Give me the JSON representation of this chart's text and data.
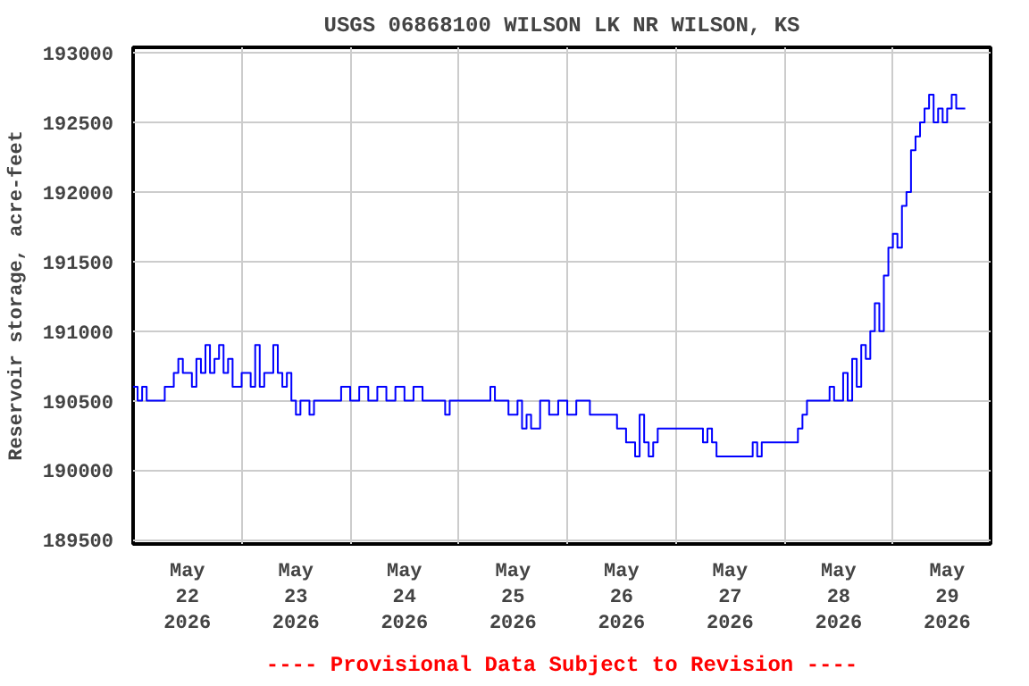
{
  "chart_data": {
    "type": "step",
    "title": "USGS 06868100 WILSON LK NR WILSON, KS",
    "ylabel": "Reservoir storage, acre-feet",
    "annotations": [
      "---- Provisional Data Subject to Revision ----"
    ],
    "color": "#0000ff",
    "grid": true,
    "line_style": "solid",
    "xlim": [
      "2026-05-22T00:00",
      "2026-05-29T21:36"
    ],
    "xticks": [
      {
        "value": "2026-05-22T12:00",
        "label": "May\n22\n2026"
      },
      {
        "value": "2026-05-23T00:00",
        "label": null
      },
      {
        "value": "2026-05-23T12:00",
        "label": "May\n23\n2026"
      },
      {
        "value": "2026-05-24T00:00",
        "label": null
      },
      {
        "value": "2026-05-24T12:00",
        "label": "May\n24\n2026"
      },
      {
        "value": "2026-05-25T00:00",
        "label": null
      },
      {
        "value": "2026-05-25T12:00",
        "label": "May\n25\n2026"
      },
      {
        "value": "2026-05-26T00:00",
        "label": null
      },
      {
        "value": "2026-05-26T12:00",
        "label": "May\n26\n2026"
      },
      {
        "value": "2026-05-27T00:00",
        "label": null
      },
      {
        "value": "2026-05-27T12:00",
        "label": "May\n27\n2026"
      },
      {
        "value": "2026-05-28T00:00",
        "label": null
      },
      {
        "value": "2026-05-28T12:00",
        "label": "May\n28\n2026"
      },
      {
        "value": "2026-05-29T00:00",
        "label": null
      },
      {
        "value": "2026-05-29T12:00",
        "label": "May\n29\n2026"
      }
    ],
    "ylim": [
      189470,
      193040
    ],
    "yticks": [
      189500,
      190000,
      190500,
      191000,
      191500,
      192000,
      192500,
      193000
    ],
    "x": [
      "2026-05-22T00:00",
      "2026-05-22T01:00",
      "2026-05-22T02:00",
      "2026-05-22T03:00",
      "2026-05-22T07:00",
      "2026-05-22T09:00",
      "2026-05-22T10:00",
      "2026-05-22T11:00",
      "2026-05-22T13:00",
      "2026-05-22T14:00",
      "2026-05-22T15:00",
      "2026-05-22T16:00",
      "2026-05-22T17:00",
      "2026-05-22T18:00",
      "2026-05-22T19:00",
      "2026-05-22T20:00",
      "2026-05-22T21:00",
      "2026-05-22T22:00",
      "2026-05-23T00:00",
      "2026-05-23T02:00",
      "2026-05-23T03:00",
      "2026-05-23T04:00",
      "2026-05-23T05:00",
      "2026-05-23T07:00",
      "2026-05-23T08:00",
      "2026-05-23T09:00",
      "2026-05-23T10:00",
      "2026-05-23T11:00",
      "2026-05-23T12:00",
      "2026-05-23T13:00",
      "2026-05-23T15:00",
      "2026-05-23T16:00",
      "2026-05-23T22:00",
      "2026-05-24T00:00",
      "2026-05-24T02:00",
      "2026-05-24T04:00",
      "2026-05-24T06:00",
      "2026-05-24T08:00",
      "2026-05-24T10:00",
      "2026-05-24T12:00",
      "2026-05-24T14:00",
      "2026-05-24T16:00",
      "2026-05-24T21:00",
      "2026-05-24T22:00",
      "2026-05-25T07:00",
      "2026-05-25T08:00",
      "2026-05-25T11:00",
      "2026-05-25T13:00",
      "2026-05-25T14:00",
      "2026-05-25T15:00",
      "2026-05-25T16:00",
      "2026-05-25T18:00",
      "2026-05-25T20:00",
      "2026-05-25T22:00",
      "2026-05-26T00:00",
      "2026-05-26T02:00",
      "2026-05-26T05:00",
      "2026-05-26T11:00",
      "2026-05-26T13:00",
      "2026-05-26T15:00",
      "2026-05-26T16:00",
      "2026-05-26T17:00",
      "2026-05-26T18:00",
      "2026-05-26T19:00",
      "2026-05-26T20:00",
      "2026-05-27T06:00",
      "2026-05-27T07:00",
      "2026-05-27T08:00",
      "2026-05-27T09:00",
      "2026-05-27T17:00",
      "2026-05-27T18:00",
      "2026-05-27T19:00",
      "2026-05-28T03:00",
      "2026-05-28T04:00",
      "2026-05-28T05:00",
      "2026-05-28T10:00",
      "2026-05-28T11:00",
      "2026-05-28T13:00",
      "2026-05-28T14:00",
      "2026-05-28T15:00",
      "2026-05-28T16:00",
      "2026-05-28T17:00",
      "2026-05-28T18:00",
      "2026-05-28T19:00",
      "2026-05-28T20:00",
      "2026-05-28T21:00",
      "2026-05-28T22:00",
      "2026-05-28T23:00",
      "2026-05-29T00:00",
      "2026-05-29T01:00",
      "2026-05-29T02:00",
      "2026-05-29T03:00",
      "2026-05-29T04:00",
      "2026-05-29T05:00",
      "2026-05-29T06:00",
      "2026-05-29T07:00",
      "2026-05-29T08:00",
      "2026-05-29T09:00",
      "2026-05-29T10:00",
      "2026-05-29T11:00",
      "2026-05-29T12:00",
      "2026-05-29T13:00",
      "2026-05-29T14:00",
      "2026-05-29T16:00"
    ],
    "values": [
      190600,
      190500,
      190600,
      190500,
      190600,
      190700,
      190800,
      190700,
      190600,
      190800,
      190700,
      190900,
      190700,
      190800,
      190900,
      190700,
      190800,
      190600,
      190700,
      190600,
      190900,
      190600,
      190700,
      190900,
      190700,
      190600,
      190700,
      190500,
      190400,
      190500,
      190400,
      190500,
      190600,
      190500,
      190600,
      190500,
      190600,
      190500,
      190600,
      190500,
      190600,
      190500,
      190400,
      190500,
      190600,
      190500,
      190400,
      190500,
      190300,
      190400,
      190300,
      190500,
      190400,
      190500,
      190400,
      190500,
      190400,
      190300,
      190200,
      190100,
      190400,
      190200,
      190100,
      190200,
      190300,
      190200,
      190300,
      190200,
      190100,
      190200,
      190100,
      190200,
      190300,
      190400,
      190500,
      190600,
      190500,
      190700,
      190500,
      190800,
      190600,
      190900,
      190800,
      191000,
      191200,
      191000,
      191400,
      191600,
      191700,
      191600,
      191900,
      192000,
      192300,
      192400,
      192500,
      192600,
      192700,
      192500,
      192600,
      192500,
      192600,
      192700,
      192600,
      192600
    ]
  }
}
